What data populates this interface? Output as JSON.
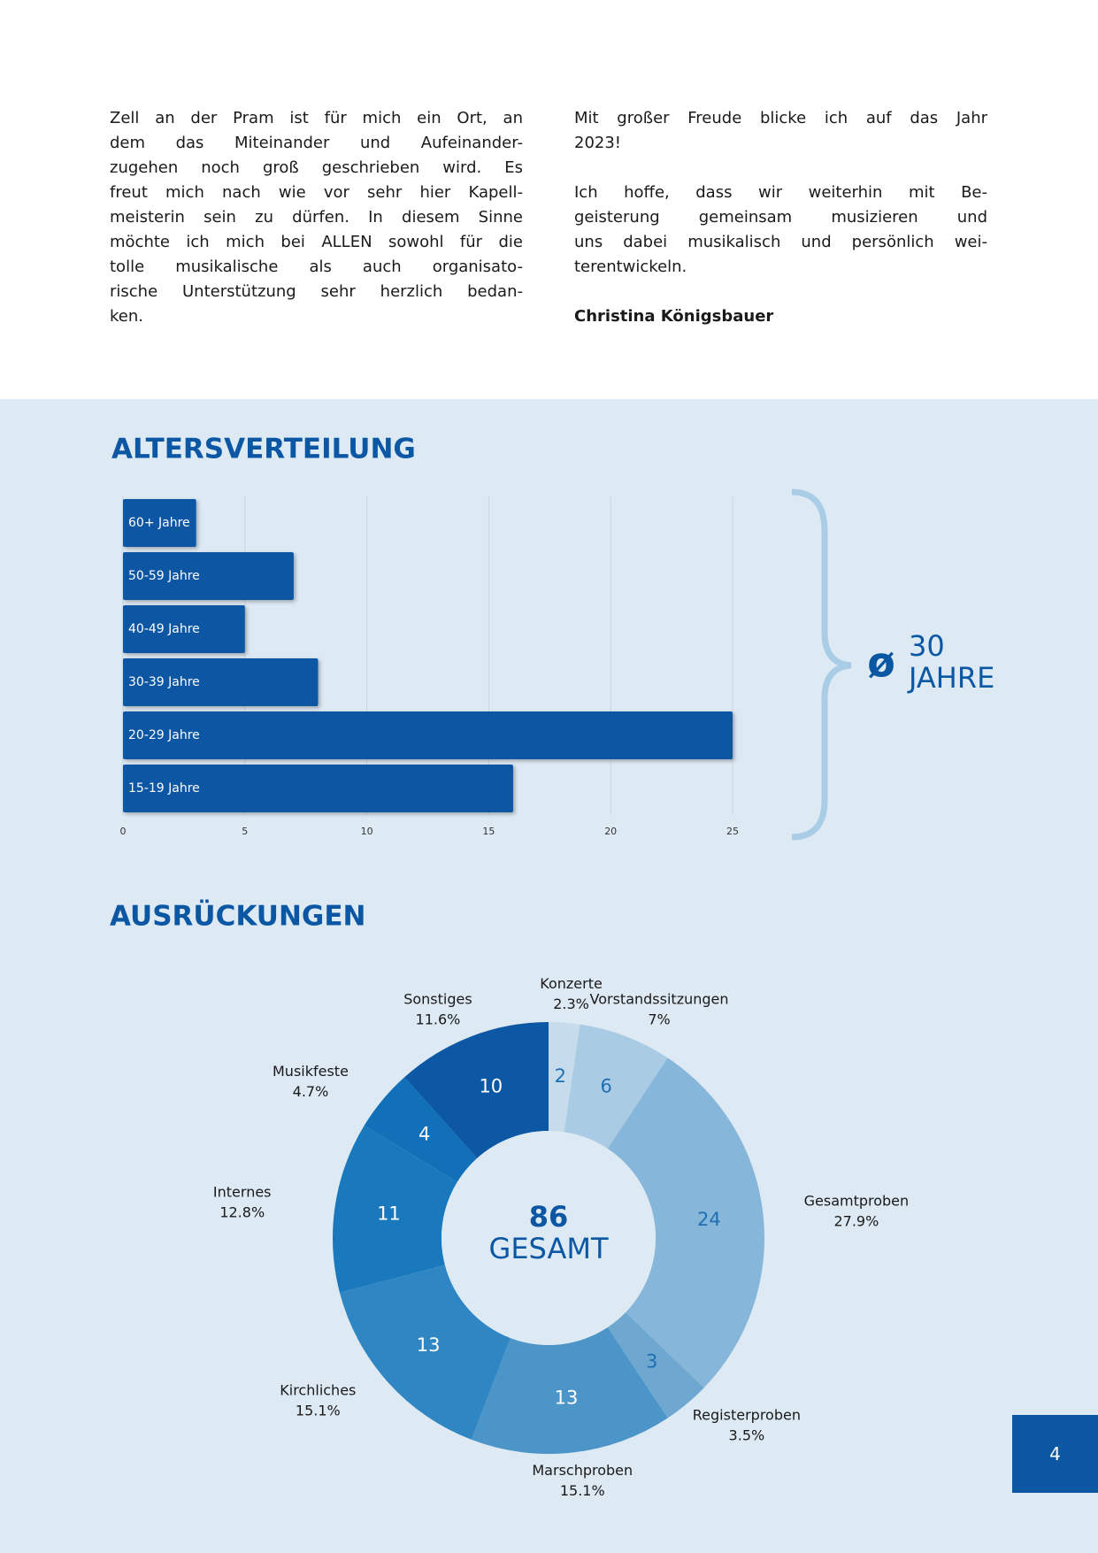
{
  "text": {
    "left": [
      "Zell an der Pram ist für mich ein Ort, an",
      "dem das Miteinander und Aufeinander-",
      "zugehen noch groß geschrieben wird. Es",
      "freut mich nach wie vor sehr hier Kapell-",
      "meisterin sein zu dürfen. In diesem Sinne",
      "möchte ich mich bei ALLEN sowohl für die",
      "tolle musikalische als auch organisato-",
      "rische Unterstützung sehr herzlich bedan-",
      "ken."
    ],
    "right_1": [
      "Mit großer Freude blicke ich auf das Jahr",
      "2023!"
    ],
    "right_2": [
      "Ich hoffe, dass wir weiterhin mit Be-",
      "geisterung gemeinsam musizieren und",
      "uns dabei musikalisch und persönlich wei-",
      "terentwickeln."
    ],
    "signature": "Christina Königsbauer"
  },
  "chart_data": [
    {
      "type": "bar",
      "orientation": "horizontal",
      "title": "ALTERSVERTEILUNG",
      "categories": [
        "60+ Jahre",
        "50-59 Jahre",
        "40-49 Jahre",
        "30-39 Jahre",
        "20-29 Jahre",
        "15-19 Jahre"
      ],
      "values": [
        3,
        7,
        5,
        8,
        25,
        16
      ],
      "color": "#0b57a4",
      "xlim": [
        0,
        25
      ],
      "xticks": [
        0,
        5,
        10,
        15,
        20,
        25
      ],
      "grid": true,
      "annotation": {
        "symbol": "ø",
        "lines": [
          "30",
          "JAHRE"
        ]
      }
    },
    {
      "type": "donut",
      "title": "AUSRÜCKUNGEN",
      "categories": [
        "Konzerte",
        "Vorstandssitzungen",
        "Gesamtproben",
        "Registerproben",
        "Marschproben",
        "Kirchliches",
        "Internes",
        "Musikfeste",
        "Sonstiges"
      ],
      "values": [
        2,
        6,
        24,
        3,
        13,
        13,
        11,
        4,
        10
      ],
      "percent_labels": [
        "2.3%",
        "7%",
        "27.9%",
        "3.5%",
        "15.1%",
        "15.1%",
        "12.8%",
        "4.7%",
        "11.6%"
      ],
      "colors": [
        "#c6dcec",
        "#a9cbe3",
        "#86b6d9",
        "#6ea8d1",
        "#4c95c8",
        "#2f86c3",
        "#1a79bd",
        "#1170b8",
        "#0c58a4"
      ],
      "center_value": 86,
      "center_label": "GESAMT"
    }
  ],
  "page_number": "4"
}
